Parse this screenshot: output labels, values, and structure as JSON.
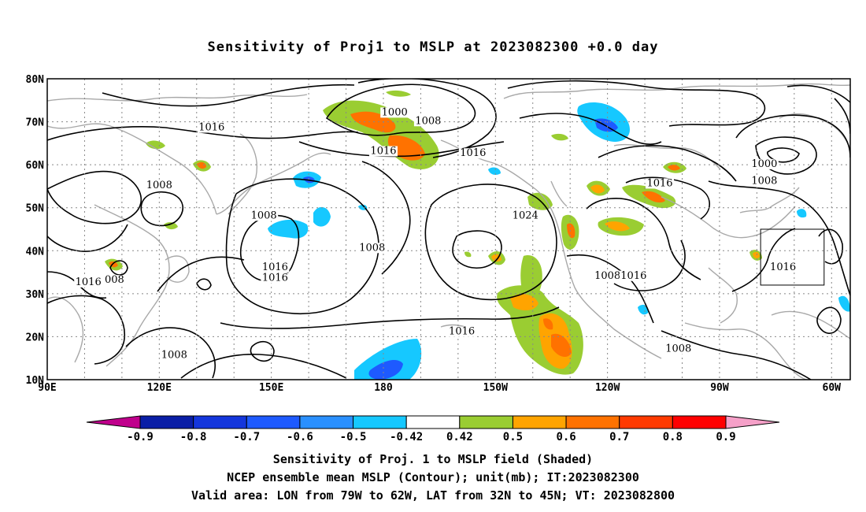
{
  "title": "Sensitivity of Proj1 to MSLP at 2023082300 +0.0 day",
  "axes": {
    "lat_labels": [
      "80N",
      "70N",
      "60N",
      "50N",
      "40N",
      "30N",
      "20N",
      "10N"
    ],
    "lon_labels": [
      "90E",
      "120E",
      "150E",
      "180",
      "150W",
      "120W",
      "90W",
      "60W"
    ]
  },
  "contour_labels": [
    {
      "text": "1000",
      "lon": 183,
      "lat": 71.5
    },
    {
      "text": "1008",
      "lon": 192,
      "lat": 69.5
    },
    {
      "text": "1016",
      "lon": 180,
      "lat": 62.5
    },
    {
      "text": "1016",
      "lon": 204,
      "lat": 62.0
    },
    {
      "text": "1016",
      "lon": 134,
      "lat": 68.0
    },
    {
      "text": "1008",
      "lon": 120,
      "lat": 54.5
    },
    {
      "text": "1008",
      "lon": 148,
      "lat": 47.5
    },
    {
      "text": "1024",
      "lon": 218,
      "lat": 47.5
    },
    {
      "text": "1008",
      "lon": 177,
      "lat": 40.0
    },
    {
      "text": "1016",
      "lon": 151,
      "lat": 35.5
    },
    {
      "text": "1016",
      "lon": 151,
      "lat": 33.0
    },
    {
      "text": "1016",
      "lon": 101,
      "lat": 32.0
    },
    {
      "text": "008",
      "lon": 108,
      "lat": 32.5
    },
    {
      "text": "1016",
      "lon": 254,
      "lat": 55.0
    },
    {
      "text": "1000",
      "lon": 282,
      "lat": 59.5
    },
    {
      "text": "1008",
      "lon": 282,
      "lat": 55.5
    },
    {
      "text": "1008",
      "lon": 240,
      "lat": 33.5
    },
    {
      "text": "1016",
      "lon": 247,
      "lat": 33.5
    },
    {
      "text": "1016",
      "lon": 287,
      "lat": 35.5
    },
    {
      "text": "1016",
      "lon": 201,
      "lat": 20.5
    },
    {
      "text": "1008",
      "lon": 259,
      "lat": 16.5
    },
    {
      "text": "1008",
      "lon": 124,
      "lat": 15.0
    }
  ],
  "colorbar": {
    "labels": [
      "-0.9",
      "-0.8",
      "-0.7",
      "-0.6",
      "-0.5",
      "-0.42",
      "0.42",
      "0.5",
      "0.6",
      "0.7",
      "0.8",
      "0.9"
    ],
    "colors": [
      "#c0008c",
      "#0a1ea6",
      "#1436dc",
      "#1e5aff",
      "#2a90ff",
      "#16c8ff",
      "#ffffff",
      "#9acd32",
      "#ffa400",
      "#ff7200",
      "#ff3a00",
      "#ff0000",
      "#f5a0c8"
    ]
  },
  "valid_area": {
    "lon": [
      281,
      298
    ],
    "lat": [
      32,
      45
    ]
  },
  "captions": [
    "Sensitivity of Proj. 1 to MSLP field (Shaded)",
    "NCEP ensemble mean MSLP (Contour); unit(mb); IT:2023082300",
    "Valid area: LON from 79W to 62W, LAT from 32N to 45N; VT: 2023082800"
  ]
}
